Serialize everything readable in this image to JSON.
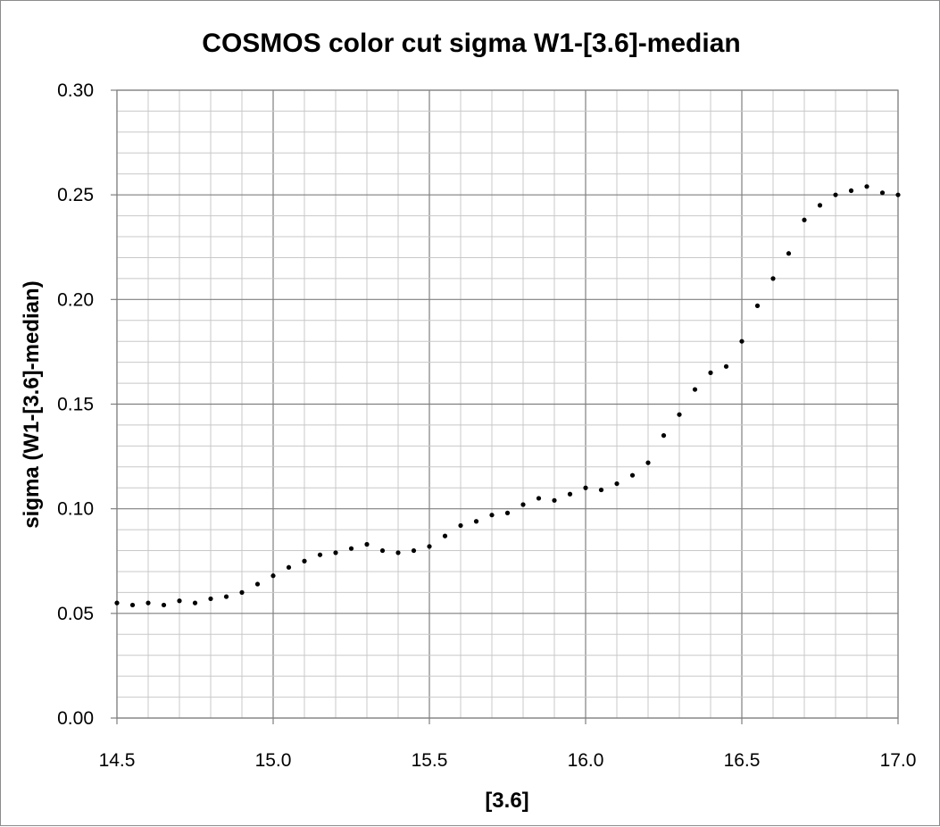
{
  "chart_data": {
    "type": "scatter",
    "title": "COSMOS color cut sigma W1-[3.6]-median",
    "xlabel": "[3.6]",
    "ylabel": "sigma (W1-[3.6]-median)",
    "xlim": [
      14.5,
      17.0
    ],
    "ylim": [
      0.0,
      0.3
    ],
    "x_ticks": [
      "14.5",
      "15.0",
      "15.5",
      "16.0",
      "16.5",
      "17.0"
    ],
    "y_ticks": [
      "0.00",
      "0.05",
      "0.10",
      "0.15",
      "0.20",
      "0.25",
      "0.30"
    ],
    "grid": true,
    "legend": "none",
    "marker_color": "#000000",
    "series": [
      {
        "x": [
          14.5,
          14.55,
          14.6,
          14.65,
          14.7,
          14.75,
          14.8,
          14.85,
          14.9,
          14.95,
          15.0,
          15.05,
          15.1,
          15.15,
          15.2,
          15.25,
          15.3,
          15.35,
          15.4,
          15.45,
          15.5,
          15.55,
          15.6,
          15.65,
          15.7,
          15.75,
          15.8,
          15.85,
          15.9,
          15.95,
          16.0,
          16.05,
          16.1,
          16.15,
          16.2,
          16.25,
          16.3,
          16.35,
          16.4,
          16.45,
          16.5,
          16.55,
          16.6,
          16.65,
          16.7,
          16.75,
          16.8,
          16.85,
          16.9,
          16.95,
          17.0
        ],
        "y": [
          0.055,
          0.054,
          0.055,
          0.054,
          0.056,
          0.055,
          0.057,
          0.058,
          0.06,
          0.064,
          0.068,
          0.072,
          0.075,
          0.078,
          0.079,
          0.081,
          0.083,
          0.08,
          0.079,
          0.08,
          0.082,
          0.087,
          0.092,
          0.094,
          0.097,
          0.098,
          0.102,
          0.105,
          0.104,
          0.107,
          0.11,
          0.109,
          0.112,
          0.116,
          0.122,
          0.135,
          0.145,
          0.157,
          0.165,
          0.168,
          0.18,
          0.197,
          0.21,
          0.222,
          0.238,
          0.245,
          0.25,
          0.252,
          0.254,
          0.251,
          0.25
        ]
      }
    ]
  }
}
